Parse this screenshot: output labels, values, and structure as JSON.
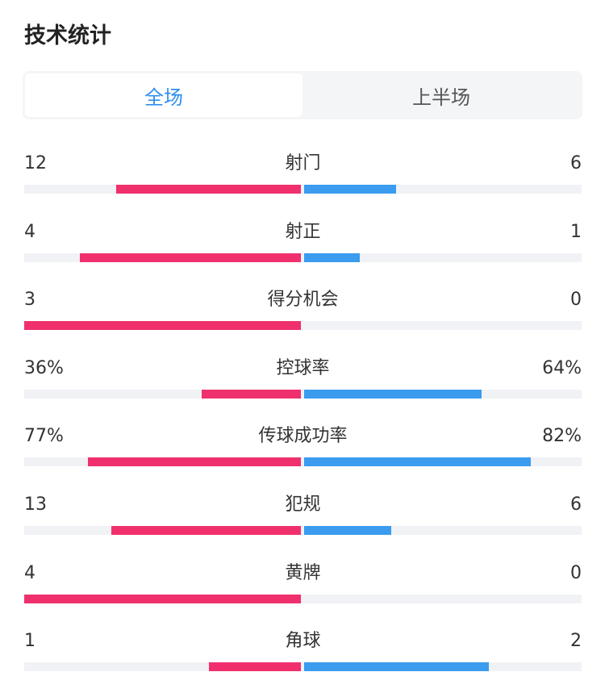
{
  "page_title": "技术统计",
  "tabs": [
    {
      "label": "全场",
      "active": true
    },
    {
      "label": "上半场",
      "active": false
    }
  ],
  "colors": {
    "home": "#f0306d",
    "away": "#3a9bef",
    "accent": "#2f8fee"
  },
  "stats": [
    {
      "label": "射门",
      "home": "12",
      "away": "6",
      "home_frac": 0.667,
      "away_frac": 0.333
    },
    {
      "label": "射正",
      "home": "4",
      "away": "1",
      "home_frac": 0.8,
      "away_frac": 0.2
    },
    {
      "label": "得分机会",
      "home": "3",
      "away": "0",
      "home_frac": 1.0,
      "away_frac": 0.0
    },
    {
      "label": "控球率",
      "home": "36%",
      "away": "64%",
      "home_frac": 0.36,
      "away_frac": 0.64
    },
    {
      "label": "传球成功率",
      "home": "77%",
      "away": "82%",
      "home_frac": 0.77,
      "away_frac": 0.82
    },
    {
      "label": "犯规",
      "home": "13",
      "away": "6",
      "home_frac": 0.684,
      "away_frac": 0.316
    },
    {
      "label": "黄牌",
      "home": "4",
      "away": "0",
      "home_frac": 1.0,
      "away_frac": 0.0
    },
    {
      "label": "角球",
      "home": "1",
      "away": "2",
      "home_frac": 0.333,
      "away_frac": 0.667
    }
  ]
}
